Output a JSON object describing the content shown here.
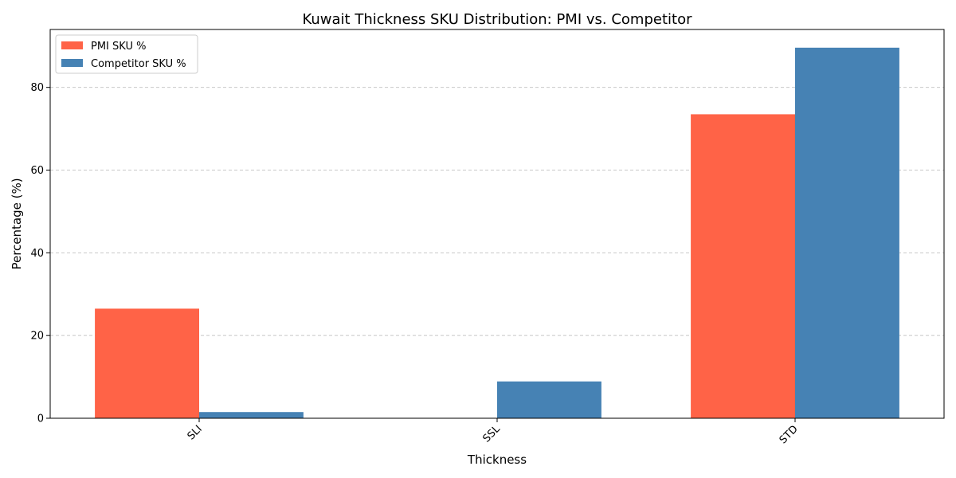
{
  "chart_data": {
    "type": "bar",
    "title": "Kuwait Thickness SKU Distribution: PMI vs. Competitor",
    "xlabel": "Thickness",
    "ylabel": "Percentage (%)",
    "categories": [
      "SLI",
      "SSL",
      "STD"
    ],
    "series": [
      {
        "name": "PMI SKU %",
        "color": "#ff6347",
        "values": [
          26.5,
          0,
          73.5
        ]
      },
      {
        "name": "Competitor SKU %",
        "color": "#4682b4",
        "values": [
          1.5,
          8.9,
          89.6
        ]
      }
    ],
    "ylim": [
      0,
      94
    ],
    "yticks": [
      0,
      20,
      40,
      60,
      80
    ],
    "grid": "y-dashed",
    "legend": "top-left"
  }
}
